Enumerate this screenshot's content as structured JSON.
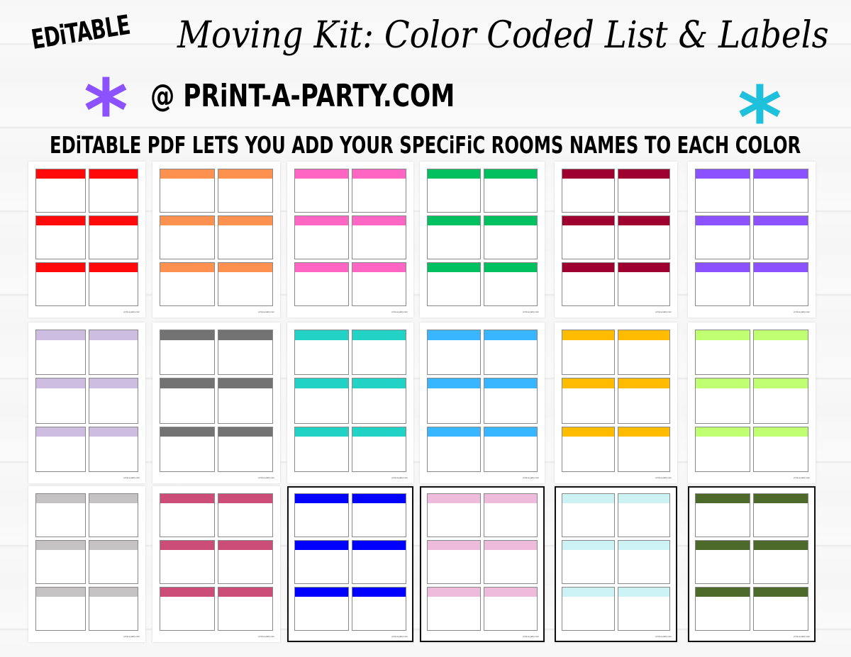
{
  "header": {
    "editable_badge": "EDiTABLE",
    "title": "Moving Kit: Color Coded List & Labels",
    "site": "@ PRiNT-A-PARTY.COM",
    "tagline": "EDiTABLE PDF LETS YOU ADD YOUR SPECiFiC ROOMS NAMES TO EACH COLOR"
  },
  "decorations": {
    "left_asterisk_color": "#8c52ff",
    "right_asterisk_color": "#1ec0dc"
  },
  "footer_text": "print-a-party.com",
  "pages": [
    {
      "color": "#ff0a0a",
      "bordered": false
    },
    {
      "color": "#fd9150",
      "bordered": false
    },
    {
      "color": "#ff66c4",
      "bordered": false
    },
    {
      "color": "#00c060",
      "bordered": false
    },
    {
      "color": "#9e0030",
      "bordered": false
    },
    {
      "color": "#8c52ff",
      "bordered": false
    },
    {
      "color": "#cdbde0",
      "bordered": false
    },
    {
      "color": "#737373",
      "bordered": false
    },
    {
      "color": "#22d3c5",
      "bordered": false
    },
    {
      "color": "#38b6ff",
      "bordered": false
    },
    {
      "color": "#ffbb00",
      "bordered": false
    },
    {
      "color": "#c1ff72",
      "bordered": false
    },
    {
      "color": "#c4c2c2",
      "bordered": false
    },
    {
      "color": "#cc4d77",
      "bordered": false
    },
    {
      "color": "#0000ff",
      "bordered": true
    },
    {
      "color": "#efbbda",
      "bordered": true
    },
    {
      "color": "#ccf2f4",
      "bordered": true
    },
    {
      "color": "#4e6a2a",
      "bordered": true
    }
  ]
}
